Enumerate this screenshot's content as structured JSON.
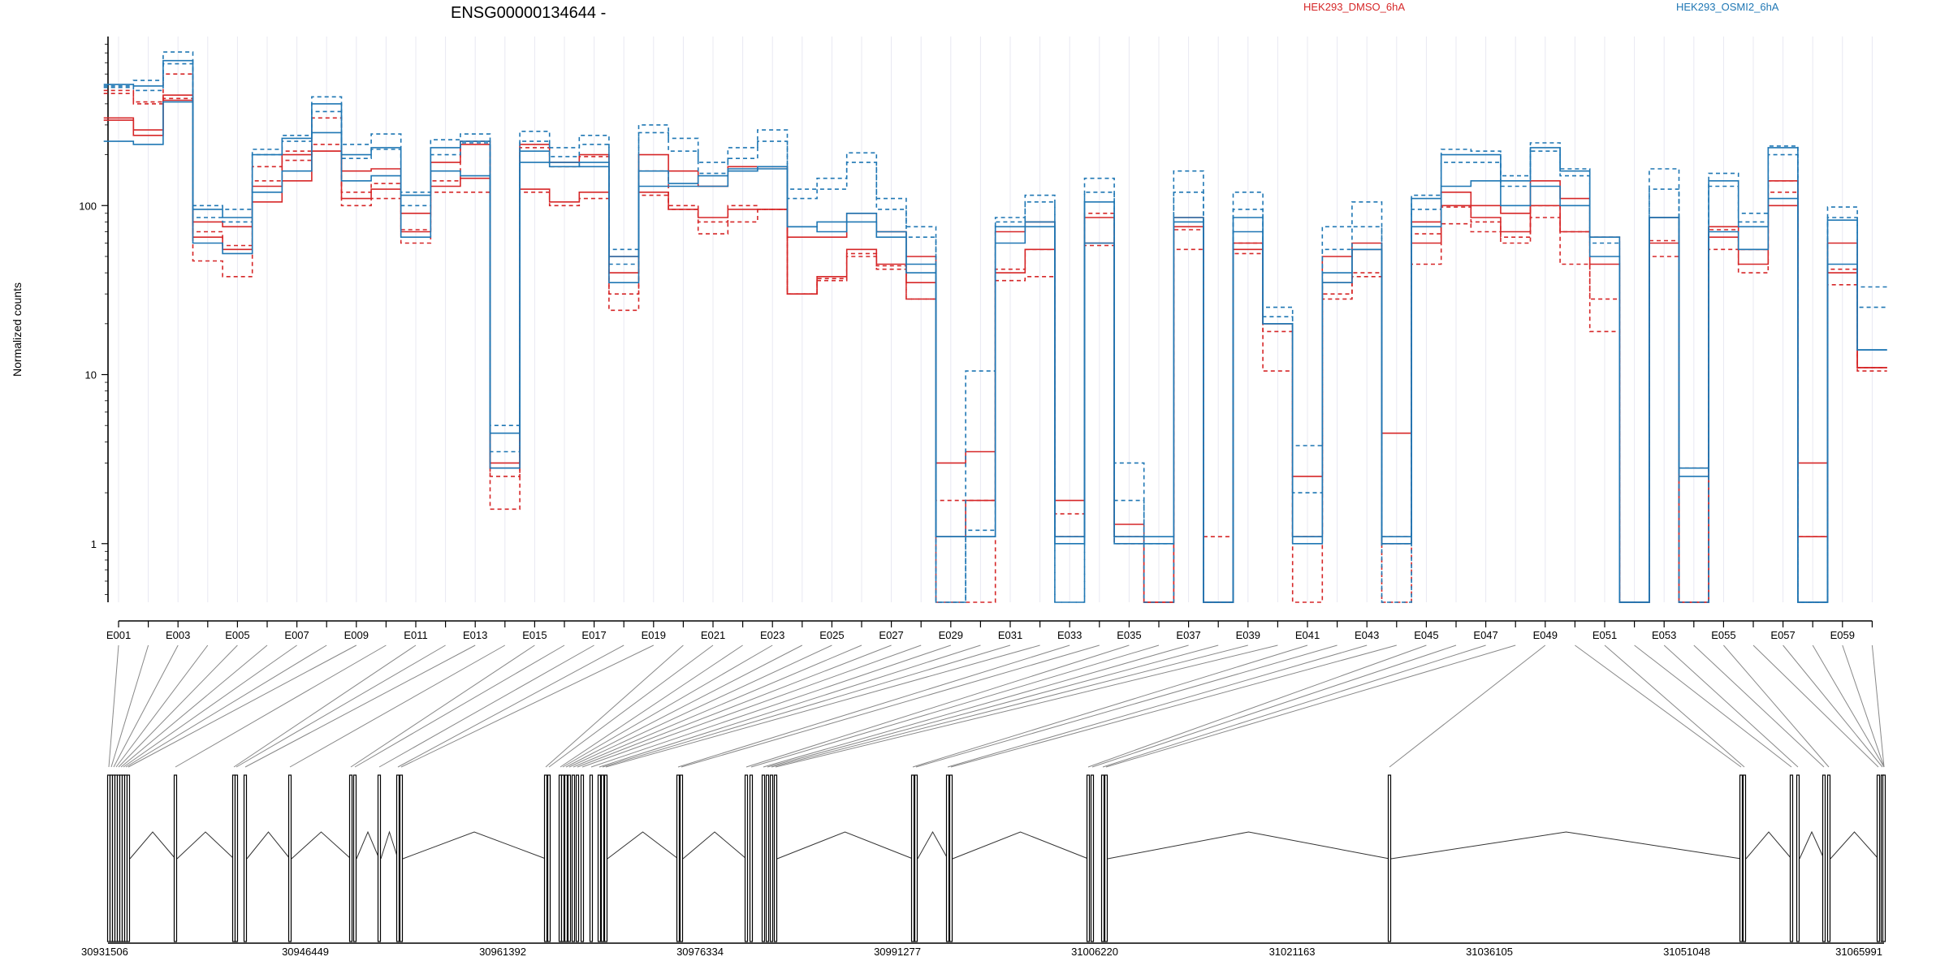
{
  "chart_data": {
    "type": "line",
    "title": "ENSG00000134644 -",
    "ylabel": "Normalized counts",
    "yscale": "log",
    "yticks": [
      1,
      10,
      100
    ],
    "ytick_labels": [
      "1",
      "10",
      "100"
    ],
    "ylim": [
      0.45,
      1000
    ],
    "legend": [
      "HEK293_DMSO_6hA",
      "HEK293_OSMI2_6hA"
    ],
    "legend_colors": [
      "#d62728",
      "#1f77b4"
    ],
    "legend_placement": "top",
    "categories": [
      "E001",
      "E002",
      "E003",
      "E004",
      "E005",
      "E006",
      "E007",
      "E008",
      "E009",
      "E010",
      "E011",
      "E012",
      "E013",
      "E014",
      "E015",
      "E016",
      "E017",
      "E018",
      "E019",
      "E020",
      "E021",
      "E022",
      "E023",
      "E024",
      "E025",
      "E026",
      "E027",
      "E028",
      "E029",
      "E030",
      "E031",
      "E032",
      "E033",
      "E034",
      "E035",
      "E036",
      "E037",
      "E038",
      "E039",
      "E040",
      "E041",
      "E042",
      "E043",
      "E044",
      "E045",
      "E046",
      "E047",
      "E048",
      "E049",
      "E050",
      "E051",
      "E052",
      "E053",
      "E054",
      "E055",
      "E056",
      "E057",
      "E058",
      "E059",
      "E060"
    ],
    "xtick_labels": [
      "E001",
      "E003",
      "E005",
      "E007",
      "E009",
      "E011",
      "E013",
      "E015",
      "E017",
      "E019",
      "E021",
      "E023",
      "E025",
      "E027",
      "E029",
      "E031",
      "E033",
      "E035",
      "E037",
      "E039",
      "E041",
      "E043",
      "E045",
      "E047",
      "E049",
      "E051",
      "E053",
      "E055",
      "E057",
      "E059"
    ],
    "series": [
      {
        "group": "HEK293_DMSO_6hA",
        "color": "#d62728",
        "dashed": false,
        "values": [
          320,
          260,
          450,
          65,
          55,
          105,
          140,
          210,
          110,
          125,
          70,
          130,
          145,
          2.8,
          125,
          105,
          120,
          40,
          120,
          95,
          85,
          95,
          95,
          30,
          38,
          55,
          45,
          35,
          1.1,
          1.8,
          40,
          55,
          1.1,
          60,
          1.1,
          0.45,
          75,
          0.45,
          60,
          20,
          1.1,
          35,
          55,
          1.0,
          60,
          100,
          85,
          70,
          100,
          70,
          45,
          0.45,
          60,
          0.45,
          65,
          45,
          100,
          1.1,
          40,
          11
        ]
      },
      {
        "group": "HEK293_DMSO_6hA",
        "color": "#d62728",
        "dashed": false,
        "values": [
          330,
          280,
          420,
          80,
          75,
          130,
          200,
          210,
          160,
          165,
          90,
          180,
          230,
          3.0,
          230,
          180,
          200,
          50,
          200,
          160,
          130,
          170,
          170,
          65,
          65,
          90,
          70,
          50,
          3.0,
          3.5,
          70,
          80,
          1.8,
          85,
          1.3,
          0.45,
          85,
          0.45,
          55,
          20,
          2.5,
          50,
          60,
          4.5,
          80,
          120,
          100,
          90,
          140,
          110,
          65,
          0.45,
          85,
          0.45,
          75,
          55,
          140,
          3.0,
          60,
          11
        ]
      },
      {
        "group": "HEK293_DMSO_6hA",
        "color": "#d62728",
        "dashed": true,
        "values": [
          460,
          400,
          600,
          47,
          38,
          140,
          185,
          230,
          100,
          110,
          60,
          120,
          120,
          1.6,
          120,
          100,
          110,
          24,
          115,
          95,
          68,
          80,
          95,
          30,
          36,
          50,
          42,
          28,
          0.45,
          0.45,
          36,
          38,
          1.1,
          58,
          1.1,
          0.45,
          55,
          0.45,
          52,
          10.5,
          0.45,
          28,
          38,
          0.45,
          45,
          78,
          70,
          60,
          85,
          45,
          18,
          0.45,
          50,
          0.45,
          55,
          40,
          120,
          0.45,
          34,
          10.5
        ]
      },
      {
        "group": "HEK293_DMSO_6hA",
        "color": "#d62728",
        "dashed": true,
        "values": [
          480,
          410,
          430,
          70,
          58,
          170,
          210,
          330,
          120,
          135,
          72,
          140,
          240,
          2.5,
          220,
          170,
          195,
          30,
          160,
          100,
          80,
          100,
          95,
          30,
          37,
          52,
          44,
          28,
          1.8,
          1.8,
          42,
          55,
          1.5,
          90,
          1.0,
          0.45,
          72,
          1.1,
          60,
          18,
          1.1,
          30,
          40,
          1.1,
          68,
          98,
          80,
          65,
          100,
          70,
          28,
          0.45,
          62,
          2.8,
          72,
          55,
          140,
          1.1,
          42,
          11
        ]
      },
      {
        "group": "HEK293_OSMI2_6hA",
        "color": "#1f77b4",
        "dashed": false,
        "values": [
          520,
          510,
          720,
          95,
          85,
          200,
          250,
          400,
          200,
          220,
          115,
          220,
          240,
          4.5,
          180,
          170,
          180,
          50,
          160,
          135,
          150,
          165,
          165,
          75,
          80,
          90,
          70,
          45,
          1.1,
          1.1,
          75,
          80,
          1.1,
          105,
          1.1,
          1.1,
          85,
          0.45,
          85,
          20,
          1.1,
          35,
          55,
          1.0,
          110,
          200,
          200,
          140,
          220,
          160,
          65,
          0.45,
          85,
          2.8,
          140,
          75,
          220,
          0.45,
          82,
          14
        ]
      },
      {
        "group": "HEK293_OSMI2_6hA",
        "color": "#1f77b4",
        "dashed": false,
        "values": [
          240,
          230,
          410,
          60,
          52,
          120,
          160,
          270,
          140,
          150,
          65,
          160,
          150,
          2.8,
          210,
          180,
          170,
          35,
          130,
          130,
          130,
          160,
          170,
          75,
          70,
          80,
          65,
          40,
          1.1,
          1.1,
          60,
          75,
          1.0,
          60,
          1.0,
          1.0,
          80,
          0.45,
          70,
          20,
          1.0,
          40,
          55,
          1.1,
          75,
          130,
          140,
          100,
          130,
          100,
          50,
          0.45,
          85,
          2.5,
          70,
          55,
          110,
          0.45,
          45,
          14
        ]
      },
      {
        "group": "HEK293_OSMI2_6hA",
        "color": "#1f77b4",
        "dashed": true,
        "values": [
          500,
          550,
          810,
          100,
          95,
          215,
          260,
          440,
          230,
          265,
          120,
          245,
          265,
          5.0,
          275,
          220,
          260,
          55,
          300,
          250,
          180,
          220,
          280,
          125,
          145,
          205,
          110,
          75,
          0.45,
          10.5,
          85,
          115,
          0.45,
          145,
          3.0,
          1.0,
          160,
          0.45,
          120,
          25,
          3.8,
          75,
          105,
          1.0,
          115,
          215,
          210,
          150,
          235,
          165,
          65,
          0.45,
          165,
          0.45,
          155,
          90,
          225,
          0.45,
          98,
          33
        ]
      },
      {
        "group": "HEK293_OSMI2_6hA",
        "color": "#1f77b4",
        "dashed": true,
        "values": [
          510,
          480,
          690,
          85,
          80,
          200,
          240,
          360,
          190,
          215,
          100,
          200,
          235,
          3.5,
          240,
          195,
          230,
          45,
          270,
          210,
          155,
          190,
          240,
          110,
          125,
          180,
          95,
          65,
          0.45,
          1.2,
          80,
          105,
          0.45,
          120,
          1.8,
          0.45,
          120,
          0.45,
          95,
          22,
          2.0,
          55,
          75,
          0.45,
          95,
          180,
          180,
          130,
          210,
          150,
          60,
          0.45,
          125,
          0.45,
          130,
          80,
          200,
          0.45,
          85,
          25
        ]
      }
    ]
  },
  "gene_model": {
    "coordinate_labels": [
      "30931506",
      "30946449",
      "30961392",
      "30976334",
      "30991277",
      "31006220",
      "31021163",
      "31036105",
      "31051048",
      "31065991"
    ],
    "highlight_color": "#cc33cc"
  }
}
